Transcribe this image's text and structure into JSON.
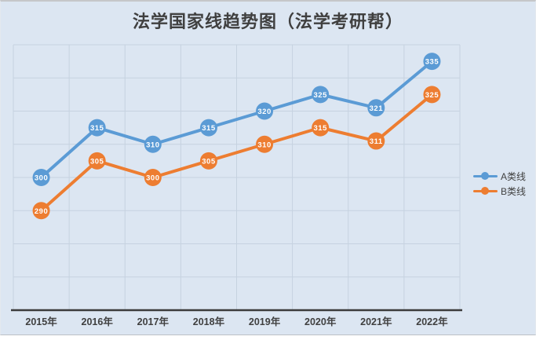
{
  "chart_data": {
    "type": "line",
    "title": "法学国家线趋势图（法学考研帮）",
    "categories": [
      "2015年",
      "2016年",
      "2017年",
      "2018年",
      "2019年",
      "2020年",
      "2021年",
      "2022年"
    ],
    "series": [
      {
        "name": "A类线",
        "color": "#5b9bd5",
        "values": [
          300,
          315,
          310,
          315,
          320,
          325,
          321,
          335
        ]
      },
      {
        "name": "B类线",
        "color": "#ed7d31",
        "values": [
          290,
          305,
          300,
          305,
          310,
          315,
          311,
          325
        ]
      }
    ],
    "ylim": [
      260,
      340
    ],
    "y_grid_step": 10,
    "grid": true,
    "legend_position": "right",
    "data_labels": "inside-marker",
    "xlabel": "",
    "ylabel": ""
  },
  "style": {
    "background": "#dce6f2",
    "grid_color": "#c6d2e0",
    "axis_color": "#3b3b3b",
    "title_color": "#404040",
    "tick_label_color": "#404040",
    "marker_label_color": "#ffffff"
  }
}
